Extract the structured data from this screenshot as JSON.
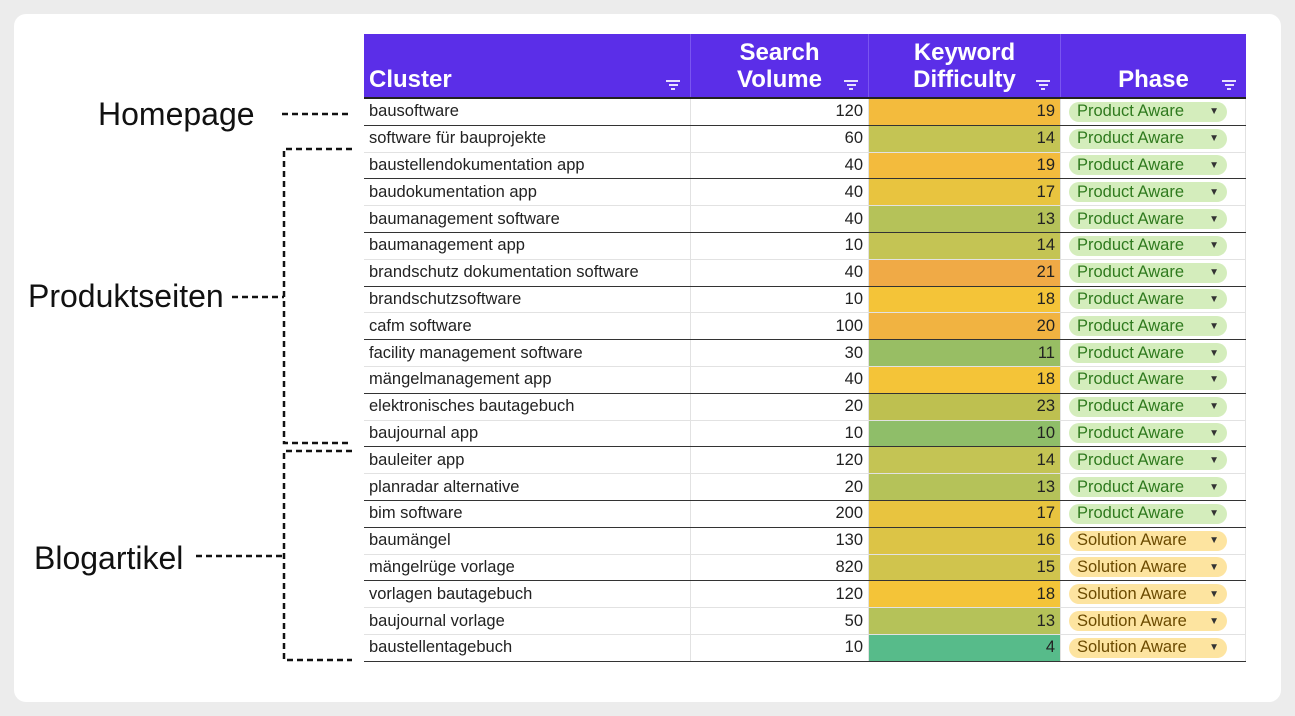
{
  "annotations": {
    "homepage": "Homepage",
    "produktseiten": "Produktseiten",
    "blogartikel": "Blogartikel"
  },
  "table": {
    "headers": {
      "cluster": "Cluster",
      "search_volume": "Search Volume",
      "keyword_difficulty": "Keyword Difficulty",
      "phase": "Phase"
    },
    "rows": [
      {
        "cluster": "bausoftware",
        "volume": "120",
        "difficulty": "19",
        "phase": "Product Aware"
      },
      {
        "cluster": "software für bauprojekte",
        "volume": "60",
        "difficulty": "14",
        "phase": "Product Aware"
      },
      {
        "cluster": "baustellendokumentation app",
        "volume": "40",
        "difficulty": "19",
        "phase": "Product Aware"
      },
      {
        "cluster": "baudokumentation app",
        "volume": "40",
        "difficulty": "17",
        "phase": "Product Aware"
      },
      {
        "cluster": "baumanagement software",
        "volume": "40",
        "difficulty": "13",
        "phase": "Product Aware"
      },
      {
        "cluster": "baumanagement app",
        "volume": "10",
        "difficulty": "14",
        "phase": "Product Aware"
      },
      {
        "cluster": "brandschutz dokumentation software",
        "volume": "40",
        "difficulty": "21",
        "phase": "Product Aware"
      },
      {
        "cluster": "brandschutzsoftware",
        "volume": "10",
        "difficulty": "18",
        "phase": "Product Aware"
      },
      {
        "cluster": "cafm software",
        "volume": "100",
        "difficulty": "20",
        "phase": "Product Aware"
      },
      {
        "cluster": "facility management software",
        "volume": "30",
        "difficulty": "11",
        "phase": "Product Aware"
      },
      {
        "cluster": "mängelmanagement app",
        "volume": "40",
        "difficulty": "18",
        "phase": "Product Aware"
      },
      {
        "cluster": "elektronisches bautagebuch",
        "volume": "20",
        "difficulty": "23",
        "phase": "Product Aware"
      },
      {
        "cluster": "baujournal app",
        "volume": "10",
        "difficulty": "10",
        "phase": "Product Aware"
      },
      {
        "cluster": "bauleiter app",
        "volume": "120",
        "difficulty": "14",
        "phase": "Product Aware"
      },
      {
        "cluster": "planradar alternative",
        "volume": "20",
        "difficulty": "13",
        "phase": "Product Aware"
      },
      {
        "cluster": "bim software",
        "volume": "200",
        "difficulty": "17",
        "phase": "Product Aware"
      },
      {
        "cluster": "baumängel",
        "volume": "130",
        "difficulty": "16",
        "phase": "Solution Aware"
      },
      {
        "cluster": "mängelrüge vorlage",
        "volume": "820",
        "difficulty": "15",
        "phase": "Solution Aware"
      },
      {
        "cluster": "vorlagen bautagebuch",
        "volume": "120",
        "difficulty": "18",
        "phase": "Solution Aware"
      },
      {
        "cluster": "baujournal vorlage",
        "volume": "50",
        "difficulty": "13",
        "phase": "Solution Aware"
      },
      {
        "cluster": "baustellentagebuch",
        "volume": "10",
        "difficulty": "4",
        "phase": "Solution Aware"
      }
    ]
  },
  "colors": {
    "header_bg": "#5b2ee8",
    "product_chip": "#d4edbc",
    "solution_chip": "#fde4a0"
  }
}
